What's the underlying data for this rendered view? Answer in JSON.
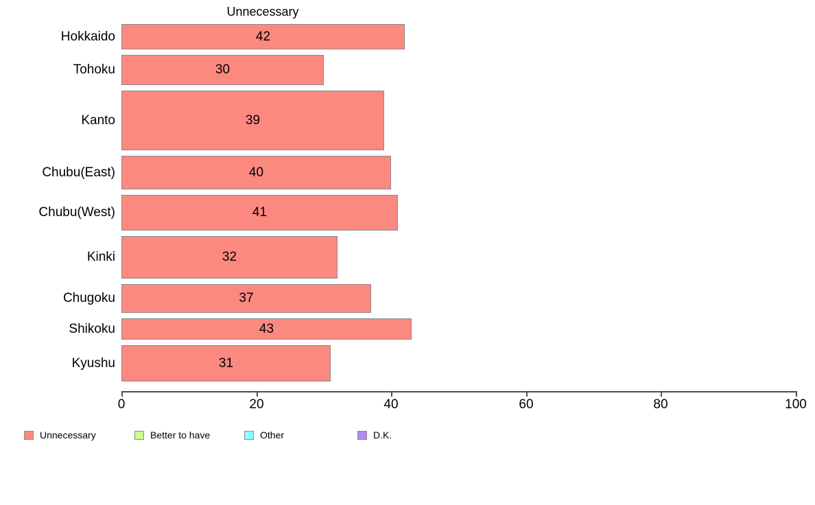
{
  "page": {
    "background": "#ffffff"
  },
  "chart_data": {
    "type": "bar",
    "orientation": "horizontal",
    "title": "Unnecessary",
    "categories": [
      "Hokkaido",
      "Tohoku",
      "Kanto",
      "Chubu(East)",
      "Chubu(West)",
      "Kinki",
      "Chugoku",
      "Shikoku",
      "Kyushu"
    ],
    "values": [
      42,
      30,
      39,
      40,
      41,
      32,
      37,
      43,
      31
    ],
    "value_labels": [
      "42",
      "30",
      "39",
      "40",
      "41",
      "32",
      "37",
      "43",
      "31"
    ],
    "row_thickness_px": [
      37,
      44,
      87,
      49,
      52,
      62,
      42,
      31,
      53
    ],
    "xlim": [
      0,
      100
    ],
    "x_ticks": [
      0,
      20,
      40,
      60,
      80,
      100
    ],
    "x_tick_labels": [
      "0",
      "20",
      "40",
      "60",
      "80",
      "100"
    ],
    "grid": "off",
    "legend_position": "bottom-left",
    "bar_fill_color": "#fb8980",
    "bar_border_color": "#8a8a8a",
    "axis_color": "#4d4d4d",
    "text_color": "#000000"
  },
  "legend": {
    "items": [
      {
        "name": "unnecessary",
        "label": "Unnecessary",
        "color": "#fb8980"
      },
      {
        "name": "better-to-have",
        "label": "Better to have",
        "color": "#ccff8f"
      },
      {
        "name": "other",
        "label": "Other",
        "color": "#8cffff"
      },
      {
        "name": "dk",
        "label": "D.K.",
        "color": "#b289ec"
      }
    ]
  }
}
